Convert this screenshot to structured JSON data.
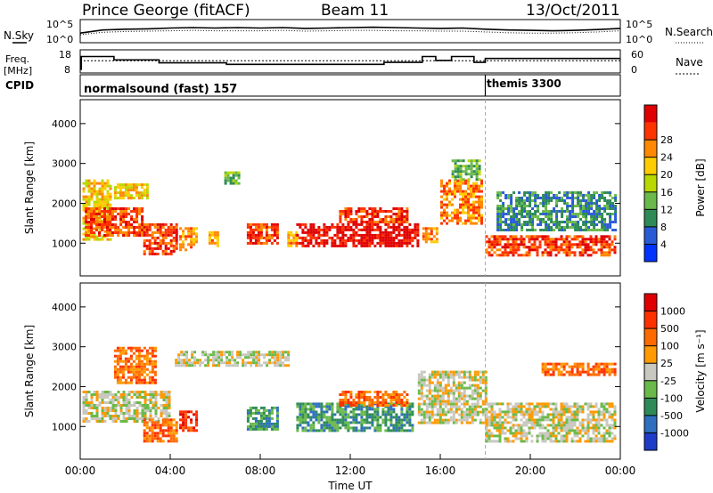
{
  "header": {
    "station": "Prince George (fitACF)",
    "beam": "Beam 11",
    "date": "13/Oct/2011"
  },
  "left_labels": {
    "nsky": "N.Sky",
    "freq_line1": "Freq.",
    "freq_line2": "[MHz]",
    "cpid": "CPID"
  },
  "right_labels": {
    "nsearch": "N.Search",
    "nave": "Nave"
  },
  "cpid_segments": [
    {
      "label": "normalsound (fast) 157",
      "start_hour": 0,
      "end_hour": 18
    },
    {
      "label": "themis 3300",
      "start_hour": 18,
      "end_hour": 24
    }
  ],
  "colors": {
    "power": [
      "#0033ff",
      "#2a5bd7",
      "#2e8b57",
      "#6aba4a",
      "#b8d800",
      "#ffcc00",
      "#ff8800",
      "#ff3300",
      "#e00000"
    ],
    "velocity": [
      "#1e3cc8",
      "#2e6fbf",
      "#2e8b57",
      "#6aba4a",
      "#c8c8c0",
      "#ff9a00",
      "#ff6a00",
      "#ff3000",
      "#e00000"
    ],
    "ground_scatter": "#c0c0b8"
  },
  "chart_data": [
    {
      "type": "line",
      "panel": "noise",
      "x_ticks_hours": [
        0,
        4,
        8,
        12,
        16,
        20,
        24
      ],
      "y_tick_labels": [
        "10^5",
        "10^0"
      ],
      "series": [
        {
          "name": "N.Sky",
          "style": "solid"
        },
        {
          "name": "N.Search",
          "style": "dotted"
        }
      ],
      "x": [
        0,
        1,
        2,
        3,
        4,
        5,
        6,
        7,
        8,
        9,
        10,
        11,
        12,
        13,
        14,
        15,
        16,
        17,
        18,
        19,
        20,
        21,
        22,
        23,
        24
      ],
      "sky_log10": [
        2.0,
        2.8,
        3.0,
        3.1,
        3.3,
        3.4,
        3.3,
        3.4,
        3.3,
        3.4,
        3.2,
        3.3,
        3.4,
        3.5,
        3.4,
        3.3,
        3.2,
        3.3,
        3.0,
        2.8,
        2.7,
        2.6,
        2.7,
        2.9,
        3.2
      ],
      "search_log10": [
        1.6,
        2.2,
        2.4,
        2.5,
        2.6,
        2.7,
        2.6,
        2.6,
        2.6,
        2.7,
        2.5,
        2.6,
        2.7,
        2.7,
        2.6,
        2.6,
        2.5,
        2.5,
        2.3,
        2.1,
        2.0,
        2.0,
        2.1,
        2.3,
        2.6
      ]
    },
    {
      "type": "line",
      "panel": "frequency",
      "x_ticks_hours": [
        0,
        4,
        8,
        12,
        16,
        20,
        24
      ],
      "left_ylim": [
        8,
        18
      ],
      "left_y_ticks": [
        8,
        18
      ],
      "right_ylim": [
        0,
        60
      ],
      "right_y_ticks": [
        0,
        60
      ],
      "series": [
        {
          "name": "Freq.",
          "style": "solid",
          "step_hours": [
            0,
            0.05,
            1.5,
            3.5,
            6.5,
            9.5,
            13.5,
            15.2,
            15.8,
            16.5,
            17.5,
            18,
            24
          ],
          "values_mhz": [
            9,
            15.5,
            13.8,
            12.3,
            11.5,
            11.5,
            12.5,
            15.5,
            13.5,
            15.5,
            12.5,
            14.5,
            14.5
          ]
        },
        {
          "name": "Nave",
          "style": "dotted",
          "hours": [
            0,
            24
          ],
          "values": [
            32,
            32
          ]
        }
      ]
    },
    {
      "type": "heatmap",
      "panel": "power",
      "title": "",
      "xlabel": "",
      "ylabel": "Slant Range [km]",
      "xlim_hours": [
        0,
        24
      ],
      "ylim_km": [
        180,
        4600
      ],
      "y_ticks": [
        1000,
        2000,
        3000,
        4000
      ],
      "colorbar": {
        "label": "Power [dB]",
        "ticks": [
          4,
          8,
          12,
          16,
          20,
          24,
          28
        ]
      },
      "regions": [
        {
          "t0": 0.1,
          "t1": 1.4,
          "r0": 1100,
          "r1": 2600,
          "level": 5
        },
        {
          "t0": 0.2,
          "t1": 2.8,
          "r0": 1200,
          "r1": 1900,
          "level": 7
        },
        {
          "t0": 1.5,
          "t1": 3.0,
          "r0": 2100,
          "r1": 2500,
          "level": 5
        },
        {
          "t0": 2.8,
          "t1": 4.3,
          "r0": 700,
          "r1": 1500,
          "level": 7
        },
        {
          "t0": 4.4,
          "t1": 5.2,
          "r0": 800,
          "r1": 1400,
          "level": 6
        },
        {
          "t0": 5.7,
          "t1": 6.1,
          "r0": 900,
          "r1": 1300,
          "level": 6
        },
        {
          "t0": 6.4,
          "t1": 7.1,
          "r0": 2500,
          "r1": 2800,
          "level": 3
        },
        {
          "t0": 7.4,
          "t1": 8.8,
          "r0": 1000,
          "r1": 1500,
          "level": 7
        },
        {
          "t0": 9.2,
          "t1": 9.7,
          "r0": 900,
          "r1": 1300,
          "level": 6
        },
        {
          "t0": 9.6,
          "t1": 15.0,
          "r0": 900,
          "r1": 1500,
          "level": 8
        },
        {
          "t0": 11.5,
          "t1": 14.5,
          "r0": 1500,
          "r1": 1900,
          "level": 7
        },
        {
          "t0": 15.2,
          "t1": 15.8,
          "r0": 1000,
          "r1": 1400,
          "level": 6
        },
        {
          "t0": 16.0,
          "t1": 17.8,
          "r0": 1500,
          "r1": 2600,
          "level": 6
        },
        {
          "t0": 16.5,
          "t1": 17.8,
          "r0": 2600,
          "r1": 3100,
          "level": 3
        },
        {
          "t0": 18.0,
          "t1": 23.8,
          "r0": 700,
          "r1": 1200,
          "level": 7
        },
        {
          "t0": 18.5,
          "t1": 23.8,
          "r0": 1300,
          "r1": 2300,
          "level": 2
        }
      ]
    },
    {
      "type": "heatmap",
      "panel": "velocity",
      "title": "",
      "xlabel": "Time UT",
      "ylabel": "Slant Range [km]",
      "xlim_hours": [
        0,
        24
      ],
      "ylim_km": [
        180,
        4600
      ],
      "y_ticks": [
        1000,
        2000,
        3000,
        4000
      ],
      "x_tick_labels": [
        "00:00",
        "04:00",
        "08:00",
        "12:00",
        "16:00",
        "20:00",
        "00:00"
      ],
      "colorbar": {
        "label": "Velocity [m s⁻¹]",
        "ticks": [
          1000,
          500,
          100,
          25,
          -25,
          -100,
          -500,
          -1000
        ]
      },
      "regions": [
        {
          "t0": 0.1,
          "t1": 4.0,
          "r0": 1100,
          "r1": 1900,
          "level": 4
        },
        {
          "t0": 1.5,
          "t1": 3.3,
          "r0": 2100,
          "r1": 3000,
          "level": 6
        },
        {
          "t0": 2.8,
          "t1": 4.3,
          "r0": 600,
          "r1": 1200,
          "level": 6
        },
        {
          "t0": 4.4,
          "t1": 5.2,
          "r0": 900,
          "r1": 1400,
          "level": 7
        },
        {
          "t0": 4.2,
          "t1": 9.3,
          "r0": 2500,
          "r1": 2900,
          "level": 4
        },
        {
          "t0": 7.4,
          "t1": 8.8,
          "r0": 900,
          "r1": 1500,
          "level": 2
        },
        {
          "t0": 9.6,
          "t1": 14.8,
          "r0": 900,
          "r1": 1600,
          "level": 2
        },
        {
          "t0": 11.5,
          "t1": 14.5,
          "r0": 1500,
          "r1": 1900,
          "level": 6
        },
        {
          "t0": 15.0,
          "t1": 18.0,
          "r0": 1100,
          "r1": 2400,
          "level": 4
        },
        {
          "t0": 18.0,
          "t1": 23.8,
          "r0": 600,
          "r1": 1600,
          "level": 4
        },
        {
          "t0": 20.5,
          "t1": 23.8,
          "r0": 2300,
          "r1": 2600,
          "level": 6
        }
      ]
    }
  ]
}
